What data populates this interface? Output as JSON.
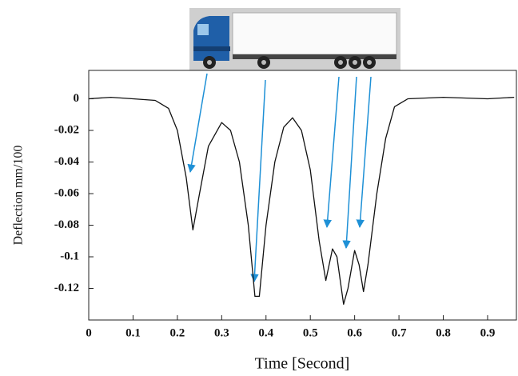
{
  "chart_data": {
    "type": "line",
    "xlabel": "Time [Second]",
    "ylabel": "Deflection mm/100",
    "x": [
      0,
      0.05,
      0.1,
      0.15,
      0.18,
      0.2,
      0.22,
      0.235,
      0.25,
      0.27,
      0.3,
      0.32,
      0.34,
      0.36,
      0.375,
      0.385,
      0.4,
      0.42,
      0.44,
      0.46,
      0.48,
      0.5,
      0.52,
      0.535,
      0.55,
      0.56,
      0.575,
      0.585,
      0.6,
      0.61,
      0.62,
      0.63,
      0.65,
      0.67,
      0.69,
      0.72,
      0.8,
      0.9,
      0.96
    ],
    "series": [
      {
        "color": "#111111",
        "values": [
          0,
          0.001,
          0,
          -0.001,
          -0.006,
          -0.02,
          -0.05,
          -0.083,
          -0.06,
          -0.03,
          -0.015,
          -0.02,
          -0.04,
          -0.08,
          -0.125,
          -0.125,
          -0.08,
          -0.04,
          -0.018,
          -0.012,
          -0.02,
          -0.045,
          -0.09,
          -0.115,
          -0.095,
          -0.1,
          -0.13,
          -0.12,
          -0.096,
          -0.105,
          -0.122,
          -0.105,
          -0.06,
          -0.025,
          -0.005,
          0,
          0.001,
          0,
          0.001
        ]
      }
    ],
    "xlim": [
      0,
      0.965
    ],
    "ylim": [
      -0.14,
      0.018
    ],
    "xticks": [
      0,
      0.1,
      0.2,
      0.3,
      0.4,
      0.5,
      0.6,
      0.7,
      0.8,
      0.9
    ],
    "yticks": [
      0,
      -0.02,
      -0.04,
      -0.06,
      -0.08,
      -0.1,
      -0.12
    ],
    "grid": false
  }
}
